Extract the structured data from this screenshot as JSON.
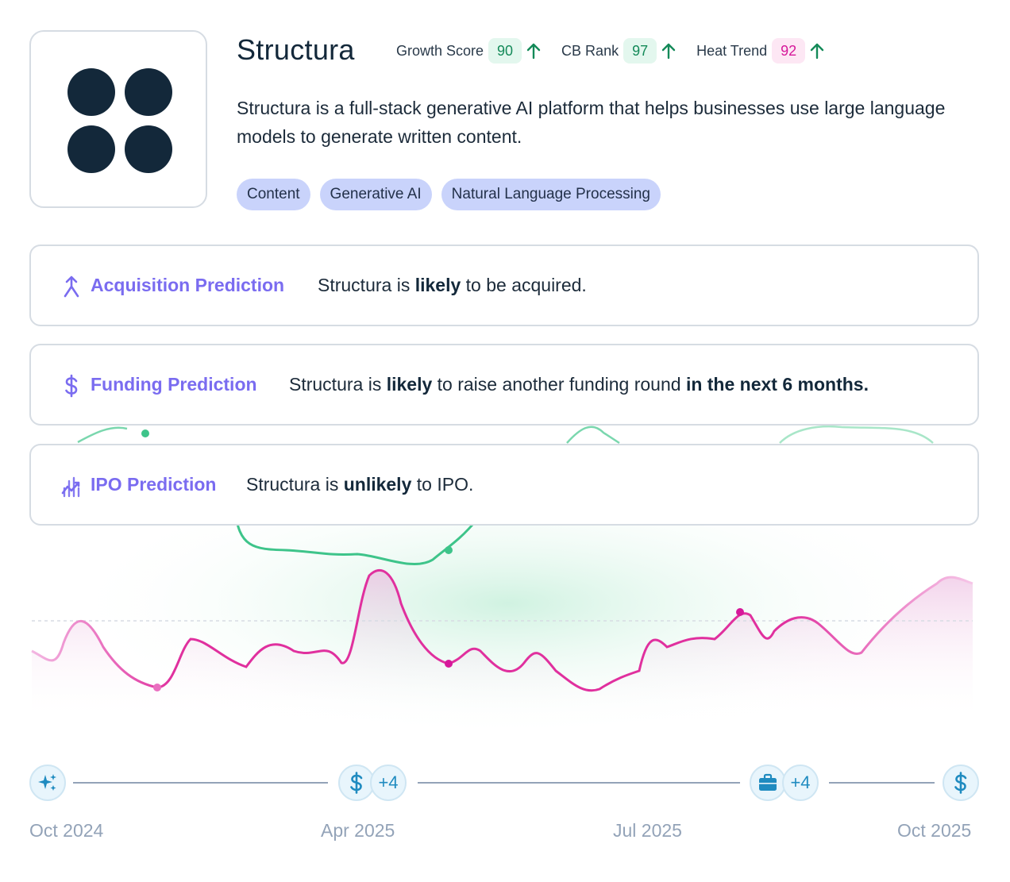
{
  "company": {
    "name": "Structura",
    "description": "Structura is a full-stack generative AI platform that helps businesses use large language models to generate written content.",
    "logo_icon": "four-dots-logo-icon"
  },
  "metrics": [
    {
      "label": "Growth Score",
      "value": "90",
      "trend": "up"
    },
    {
      "label": "CB Rank",
      "value": "97",
      "trend": "up"
    },
    {
      "label": "Heat Trend",
      "value": "92",
      "trend": "up"
    }
  ],
  "tags": [
    "Content",
    "Generative AI",
    "Natural Language Processing"
  ],
  "predictions": {
    "acquisition": {
      "title": "Acquisition Prediction",
      "t1": "Structura is ",
      "b1": "likely",
      "t2": " to be acquired."
    },
    "funding": {
      "title": "Funding Prediction",
      "t1": "Structura is ",
      "b1": "likely",
      "t2": " to raise another funding round ",
      "b2": "in the next 6 months."
    },
    "ipo": {
      "title": "IPO Prediction",
      "t1": "Structura is ",
      "b1": "unlikely",
      "t2": " to IPO."
    }
  },
  "timeline": {
    "events": [
      {
        "icon": "sparkle-icon"
      },
      {
        "icon": "dollar-icon",
        "extra": "+4"
      },
      {
        "icon": "briefcase-icon",
        "extra": "+4"
      },
      {
        "icon": "dollar-icon"
      }
    ],
    "axis_labels": [
      "Oct 2024",
      "Apr 2025",
      "Jul 2025",
      "Oct 2025"
    ]
  },
  "colors": {
    "accent_purple": "#7a6cf0",
    "growth_green": "#148a59",
    "heat_pink": "#d6189a",
    "tag_bg": "#c9d3fb",
    "timeline_blue": "#1f8bc0"
  }
}
